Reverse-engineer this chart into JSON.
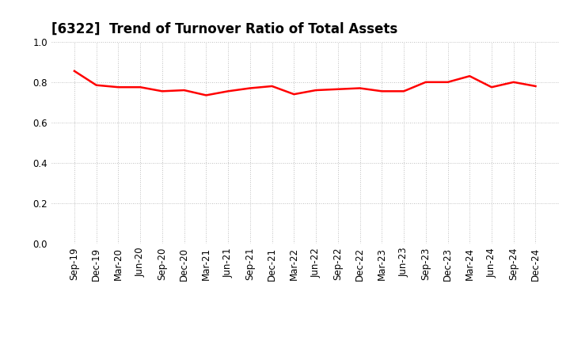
{
  "title": "[6322]  Trend of Turnover Ratio of Total Assets",
  "x_labels": [
    "Sep-19",
    "Dec-19",
    "Mar-20",
    "Jun-20",
    "Sep-20",
    "Dec-20",
    "Mar-21",
    "Jun-21",
    "Sep-21",
    "Dec-21",
    "Mar-22",
    "Jun-22",
    "Sep-22",
    "Dec-22",
    "Mar-23",
    "Jun-23",
    "Sep-23",
    "Dec-23",
    "Mar-24",
    "Jun-24",
    "Sep-24",
    "Dec-24"
  ],
  "values": [
    0.855,
    0.785,
    0.775,
    0.775,
    0.755,
    0.76,
    0.735,
    0.755,
    0.77,
    0.78,
    0.74,
    0.76,
    0.765,
    0.77,
    0.755,
    0.755,
    0.8,
    0.8,
    0.83,
    0.775,
    0.8,
    0.78
  ],
  "line_color": "#ff0000",
  "line_width": 1.8,
  "ylim": [
    0.0,
    1.0
  ],
  "yticks": [
    0.0,
    0.2,
    0.4,
    0.6,
    0.8,
    1.0
  ],
  "grid_color": "#aaaaaa",
  "bg_color": "#ffffff",
  "title_fontsize": 12,
  "tick_fontsize": 8.5
}
